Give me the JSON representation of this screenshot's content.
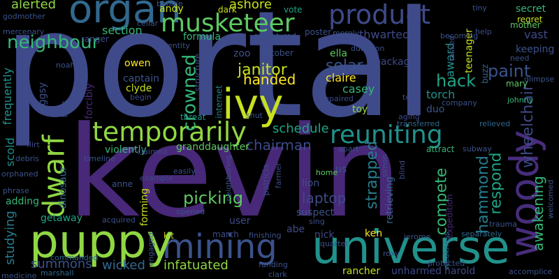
{
  "palette": {
    "background": "#000000",
    "purple_dark": "#472d7b",
    "purple": "#482878",
    "indigo": "#3e4a89",
    "slate": "#3b528b",
    "blue_teal": "#31688e",
    "teal": "#287c8e",
    "teal_green": "#21918c",
    "sea_green": "#20a486",
    "green": "#35b779",
    "light_green": "#5ec962",
    "lime": "#90d743",
    "yellow_green": "#c8e020",
    "yellow": "#fde725"
  },
  "words": [
    {
      "text": "portal",
      "color": "#3e4a89"
    },
    {
      "text": "kevin",
      "color": "#482878"
    },
    {
      "text": "universe",
      "color": "#21918c"
    },
    {
      "text": "mining",
      "color": "#3b528b"
    },
    {
      "text": "puppy",
      "color": "#90d743"
    },
    {
      "text": "ivy",
      "color": "#c8e020"
    },
    {
      "text": "woody",
      "color": "#472d7b"
    },
    {
      "text": "organ",
      "color": "#31688e"
    },
    {
      "text": "product",
      "color": "#3e4a89"
    },
    {
      "text": "temporarily",
      "color": "#90d743"
    },
    {
      "text": "musketeer",
      "color": "#5ec962"
    },
    {
      "text": "reuniting",
      "color": "#21918c"
    },
    {
      "text": "dwarf",
      "color": "#90d743"
    },
    {
      "text": "neighbour",
      "color": "#35b779"
    },
    {
      "text": "crowned",
      "color": "#35b779"
    },
    {
      "text": "janitor",
      "color": "#c8e020"
    },
    {
      "text": "handed",
      "color": "#fde725"
    },
    {
      "text": "solar",
      "color": "#3b528b"
    },
    {
      "text": "hack",
      "color": "#20a486"
    },
    {
      "text": "paint",
      "color": "#3b528b"
    },
    {
      "text": "wheelchair",
      "color": "#3e4a89"
    },
    {
      "text": "picking",
      "color": "#5ec962"
    },
    {
      "text": "laptop",
      "color": "#3e4a89"
    },
    {
      "text": "strapped",
      "color": "#287c8e"
    },
    {
      "text": "compete",
      "color": "#35b779"
    },
    {
      "text": "hammond",
      "color": "#287c8e"
    },
    {
      "text": "respond",
      "color": "#20a486"
    },
    {
      "text": "awakening",
      "color": "#35b779"
    },
    {
      "text": "chairman",
      "color": "#3e4a89"
    },
    {
      "text": "schedule",
      "color": "#20a486"
    },
    {
      "text": "infatuated",
      "color": "#90d743"
    },
    {
      "text": "summons",
      "color": "#3b528b"
    },
    {
      "text": "wicked",
      "color": "#31688e"
    },
    {
      "text": "studying",
      "color": "#287c8e"
    },
    {
      "text": "scold",
      "color": "#21918c"
    },
    {
      "text": "frequently",
      "color": "#21918c"
    },
    {
      "text": "alerted",
      "color": "#90d743"
    },
    {
      "text": "ashore",
      "color": "#c8e020"
    },
    {
      "text": "award",
      "color": "#21918c"
    },
    {
      "text": "thwarted",
      "color": "#3e4a89"
    },
    {
      "text": "section",
      "color": "#35b779"
    },
    {
      "text": "casey",
      "color": "#35b779"
    },
    {
      "text": "claire",
      "color": "#fde725"
    },
    {
      "text": "torch",
      "color": "#21918c"
    },
    {
      "text": "teenager",
      "color": "#c8e020"
    },
    {
      "text": "user",
      "color": "#3e4a89"
    },
    {
      "text": "suspect",
      "color": "#3b528b"
    },
    {
      "text": "abe",
      "color": "#3e4a89"
    },
    {
      "text": "nick",
      "color": "#3e4a89"
    },
    {
      "text": "ken",
      "color": "#fde725"
    },
    {
      "text": "lion",
      "color": "#3b528b"
    },
    {
      "text": "retrieving",
      "color": "#31688e"
    },
    {
      "text": "forming",
      "color": "#c8e020"
    },
    {
      "text": "getaway",
      "color": "#20a486"
    },
    {
      "text": "dinosaur",
      "color": "#31688e"
    },
    {
      "text": "adding",
      "color": "#35b779"
    },
    {
      "text": "eggsy",
      "color": "#3b528b"
    },
    {
      "text": "forcibly",
      "color": "#482878"
    },
    {
      "text": "violently",
      "color": "#35b779"
    },
    {
      "text": "granddaughter",
      "color": "#5ec962"
    },
    {
      "text": "clyde",
      "color": "#c8e020"
    },
    {
      "text": "captain",
      "color": "#3b528b"
    },
    {
      "text": "owen",
      "color": "#fde725"
    },
    {
      "text": "zoo",
      "color": "#3b528b"
    },
    {
      "text": "october",
      "color": "#3b528b"
    },
    {
      "text": "ella",
      "color": "#5ec962"
    },
    {
      "text": "package",
      "color": "#3e4a89"
    },
    {
      "text": "duo",
      "color": "#3b528b"
    },
    {
      "text": "toy",
      "color": "#90d743"
    },
    {
      "text": "rancher",
      "color": "#c8e020"
    },
    {
      "text": "unharmed",
      "color": "#3e4a89"
    },
    {
      "text": "harold",
      "color": "#3e4a89"
    },
    {
      "text": "marshall",
      "color": "#31688e"
    },
    {
      "text": "accomplice",
      "color": "#3b528b"
    },
    {
      "text": "march",
      "color": "#3e4a89"
    },
    {
      "text": "vast",
      "color": "#3e4a89"
    },
    {
      "text": "secret",
      "color": "#35b779"
    },
    {
      "text": "regret",
      "color": "#c8e020"
    },
    {
      "text": "mother",
      "color": "#5ec962"
    },
    {
      "text": "keeping",
      "color": "#3b528b"
    },
    {
      "text": "mary",
      "color": "#5ec962"
    },
    {
      "text": "buzz",
      "color": "#31688e"
    },
    {
      "text": "johnny",
      "color": "#35b779"
    },
    {
      "text": "patricia",
      "color": "#3e4a89"
    },
    {
      "text": "us",
      "color": "#3b528b"
    },
    {
      "text": "dark",
      "color": "#c8e020"
    },
    {
      "text": "andy",
      "color": "#c8e020"
    },
    {
      "text": "vote",
      "color": "#20a486"
    },
    {
      "text": "formula",
      "color": "#35b779"
    },
    {
      "text": "poster",
      "color": "#3b528b"
    },
    {
      "text": "internet",
      "color": "#287c8e"
    },
    {
      "text": "threat",
      "color": "#21918c"
    },
    {
      "text": "toss",
      "color": "#3b528b"
    },
    {
      "text": "noah",
      "color": "#3b528b"
    },
    {
      "text": "begin",
      "color": "#3e4a89"
    },
    {
      "text": "structure",
      "color": "#3e4a89"
    },
    {
      "text": "expedition",
      "color": "#482878"
    },
    {
      "text": "weakness",
      "color": "#31688e"
    },
    {
      "text": "separately",
      "color": "#31688e"
    },
    {
      "text": "kit",
      "color": "#c8e020"
    },
    {
      "text": "finishing",
      "color": "#3b528b"
    },
    {
      "text": "engaged",
      "color": "#3b528b"
    },
    {
      "text": "commanded",
      "color": "#31688e"
    },
    {
      "text": "anne",
      "color": "#3b528b"
    },
    {
      "text": "flirt",
      "color": "#3e4a89"
    },
    {
      "text": "transferred",
      "color": "#31688e"
    },
    {
      "text": "relieved",
      "color": "#31688e"
    },
    {
      "text": "attract",
      "color": "#35b779"
    },
    {
      "text": "apart",
      "color": "#3b528b"
    },
    {
      "text": "home",
      "color": "#5ec962"
    },
    {
      "text": "blind",
      "color": "#3e4a89"
    },
    {
      "text": "simon",
      "color": "#3b528b"
    },
    {
      "text": "farmer",
      "color": "#3e4a89"
    },
    {
      "text": "dungeon",
      "color": "#3b528b"
    },
    {
      "text": "merely",
      "color": "#3b528b"
    },
    {
      "text": "repaired",
      "color": "#3e4a89"
    },
    {
      "text": "test",
      "color": "#3e4a89"
    },
    {
      "text": "aging",
      "color": "#3e4a89"
    },
    {
      "text": "shut",
      "color": "#3b528b"
    },
    {
      "text": "tasked",
      "color": "#3b528b"
    },
    {
      "text": "help",
      "color": "#3b528b"
    },
    {
      "text": "need",
      "color": "#3b528b"
    },
    {
      "text": "glimpse",
      "color": "#3b528b"
    },
    {
      "text": "becoming",
      "color": "#3b528b"
    },
    {
      "text": "tiny",
      "color": "#3b528b"
    },
    {
      "text": "godmother",
      "color": "#3b528b"
    },
    {
      "text": "mercenary",
      "color": "#3b528b"
    },
    {
      "text": "ranger",
      "color": "#3e4a89"
    },
    {
      "text": "cellar",
      "color": "#3b528b"
    },
    {
      "text": "bonnie",
      "color": "#3b528b"
    },
    {
      "text": "entity",
      "color": "#3b528b"
    },
    {
      "text": "recaptured",
      "color": "#3b528b"
    },
    {
      "text": "orphaned",
      "color": "#3b528b"
    },
    {
      "text": "phrase",
      "color": "#3b528b"
    },
    {
      "text": "debris",
      "color": "#3b528b"
    },
    {
      "text": "timeline",
      "color": "#3b528b"
    },
    {
      "text": "claimed",
      "color": "#3e4a89"
    },
    {
      "text": "example",
      "color": "#3e4a89"
    },
    {
      "text": "easily",
      "color": "#3b528b"
    },
    {
      "text": "opened",
      "color": "#3b528b"
    },
    {
      "text": "acquired",
      "color": "#3b528b"
    },
    {
      "text": "neighboring",
      "color": "#3b528b"
    },
    {
      "text": "sing",
      "color": "#3b528b"
    },
    {
      "text": "quarter",
      "color": "#3b528b"
    },
    {
      "text": "jerome",
      "color": "#3b528b"
    },
    {
      "text": "roxy",
      "color": "#3b528b"
    },
    {
      "text": "funding",
      "color": "#3b528b"
    },
    {
      "text": "clark",
      "color": "#3b528b"
    },
    {
      "text": "protected",
      "color": "#3b528b"
    },
    {
      "text": "trauma",
      "color": "#3b528b"
    },
    {
      "text": "welcomed",
      "color": "#3b528b"
    },
    {
      "text": "medicine",
      "color": "#3b528b"
    },
    {
      "text": "company",
      "color": "#3b528b"
    },
    {
      "text": "subway",
      "color": "#3b528b"
    }
  ]
}
